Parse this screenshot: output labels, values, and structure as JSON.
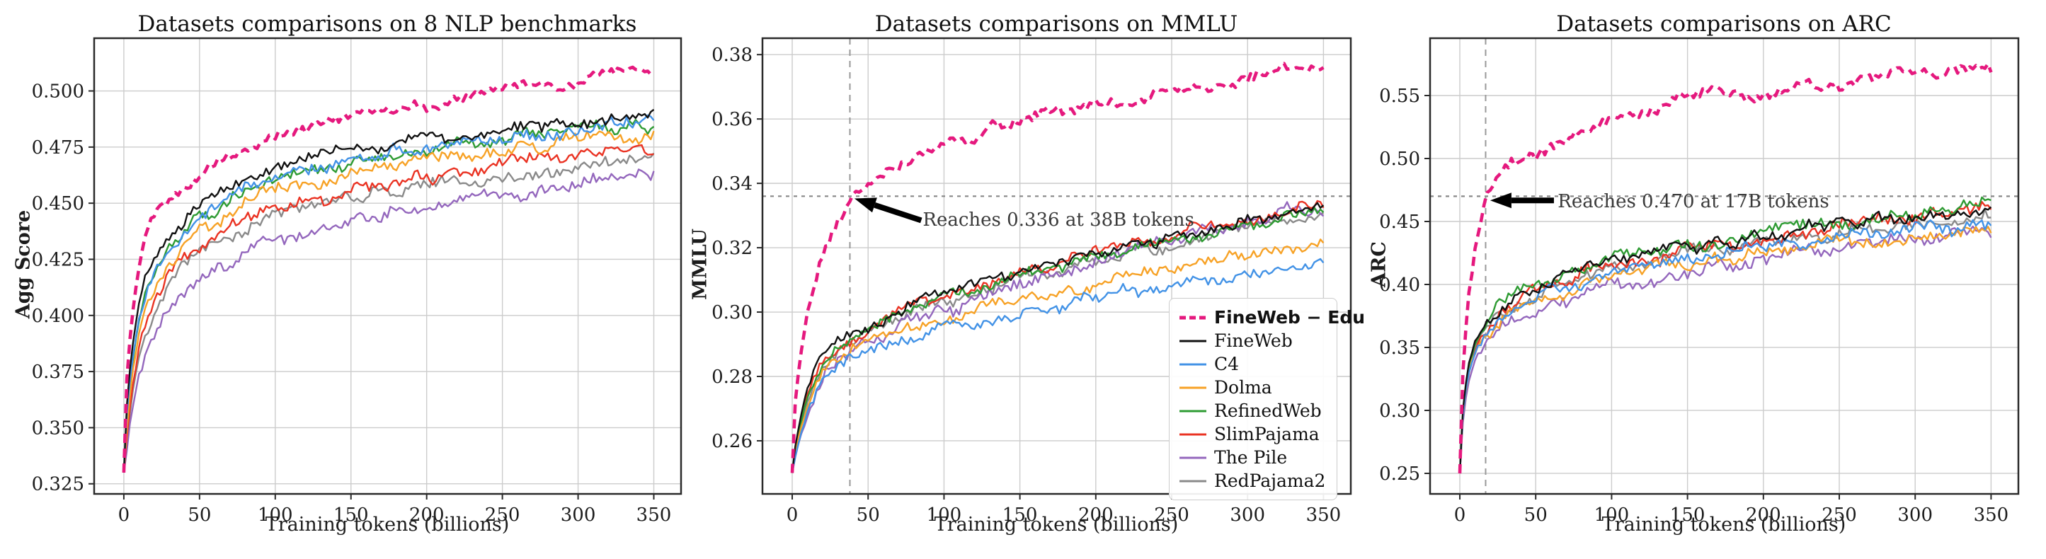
{
  "figure": {
    "background": "#ffffff",
    "text_color": "#1c1c1c",
    "grid_color": "#cccccc",
    "spine_color": "#2a2a2a",
    "guide_dash_color": "#999999",
    "guide_dot_color": "#888888",
    "annotation_color": "#3a3a3a"
  },
  "legend": {
    "position": "lower-right-of-middle-plot",
    "entries": [
      {
        "label": "FineWeb − Edu",
        "color": "#e5197e",
        "dashed": true,
        "bold": true
      },
      {
        "label": "FineWeb",
        "color": "#111111",
        "dashed": false,
        "bold": false
      },
      {
        "label": "C4",
        "color": "#4292e6",
        "dashed": false,
        "bold": false
      },
      {
        "label": "Dolma",
        "color": "#f7a226",
        "dashed": false,
        "bold": false
      },
      {
        "label": "RefinedWeb",
        "color": "#2e9b33",
        "dashed": false,
        "bold": false
      },
      {
        "label": "SlimPajama",
        "color": "#ea3323",
        "dashed": false,
        "bold": false
      },
      {
        "label": "The Pile",
        "color": "#9467bd",
        "dashed": false,
        "bold": false
      },
      {
        "label": "RedPajama2",
        "color": "#8a8a8a",
        "dashed": false,
        "bold": false
      }
    ]
  },
  "chart_data": [
    {
      "type": "line",
      "title": "Datasets comparisons on 8 NLP benchmarks",
      "xlabel": "Training tokens (billions)",
      "ylabel": "Agg Score",
      "xlim": [
        -19.6,
        368
      ],
      "ylim": [
        0.3205,
        0.5235
      ],
      "xticks": [
        "0",
        "50",
        "100",
        "150",
        "200",
        "250",
        "300",
        "350"
      ],
      "yticks": [
        "0.325",
        "0.350",
        "0.375",
        "0.400",
        "0.425",
        "0.450",
        "0.475",
        "0.500"
      ],
      "grid": true,
      "jitter": 0.0026,
      "x_keypoints": [
        0,
        2,
        5,
        10,
        15,
        20,
        30,
        40,
        50,
        75,
        100,
        125,
        150,
        175,
        200,
        225,
        250,
        275,
        300,
        325,
        350
      ],
      "series": [
        {
          "name": "FineWeb − Edu",
          "color": "#e5197e",
          "dashed": true,
          "jitter_scale": 0.75,
          "values": [
            0.33,
            0.372,
            0.398,
            0.422,
            0.437,
            0.444,
            0.452,
            0.458,
            0.464,
            0.473,
            0.48,
            0.484,
            0.488,
            0.491,
            0.493,
            0.497,
            0.503,
            0.503,
            0.504,
            0.51,
            0.508
          ]
        },
        {
          "name": "FineWeb",
          "color": "#111111",
          "dashed": false,
          "jitter_scale": 1,
          "values": [
            0.33,
            0.36,
            0.383,
            0.404,
            0.417,
            0.425,
            0.437,
            0.443,
            0.448,
            0.459,
            0.466,
            0.47,
            0.473,
            0.476,
            0.479,
            0.481,
            0.483,
            0.485,
            0.486,
            0.487,
            0.49
          ]
        },
        {
          "name": "C4",
          "color": "#4292e6",
          "dashed": false,
          "jitter_scale": 1,
          "values": [
            0.33,
            0.356,
            0.378,
            0.398,
            0.412,
            0.42,
            0.432,
            0.439,
            0.445,
            0.455,
            0.462,
            0.466,
            0.469,
            0.472,
            0.476,
            0.478,
            0.48,
            0.482,
            0.484,
            0.486,
            0.487
          ]
        },
        {
          "name": "Dolma",
          "color": "#f7a226",
          "dashed": false,
          "jitter_scale": 1,
          "values": [
            0.33,
            0.35,
            0.372,
            0.392,
            0.405,
            0.413,
            0.425,
            0.432,
            0.438,
            0.448,
            0.455,
            0.459,
            0.463,
            0.466,
            0.469,
            0.471,
            0.474,
            0.476,
            0.478,
            0.479,
            0.481
          ]
        },
        {
          "name": "RefinedWeb",
          "color": "#2e9b33",
          "dashed": false,
          "jitter_scale": 1,
          "values": [
            0.33,
            0.355,
            0.376,
            0.396,
            0.41,
            0.418,
            0.43,
            0.437,
            0.443,
            0.453,
            0.46,
            0.464,
            0.468,
            0.471,
            0.474,
            0.476,
            0.478,
            0.48,
            0.482,
            0.483,
            0.485
          ]
        },
        {
          "name": "SlimPajama",
          "color": "#ea3323",
          "dashed": false,
          "jitter_scale": 1,
          "values": [
            0.33,
            0.346,
            0.366,
            0.385,
            0.398,
            0.406,
            0.418,
            0.425,
            0.431,
            0.441,
            0.448,
            0.452,
            0.456,
            0.459,
            0.462,
            0.465,
            0.467,
            0.469,
            0.471,
            0.473,
            0.476
          ]
        },
        {
          "name": "The Pile",
          "color": "#9467bd",
          "dashed": false,
          "jitter_scale": 1,
          "values": [
            0.33,
            0.34,
            0.357,
            0.374,
            0.385,
            0.392,
            0.403,
            0.41,
            0.416,
            0.426,
            0.433,
            0.438,
            0.442,
            0.445,
            0.448,
            0.451,
            0.453,
            0.456,
            0.458,
            0.461,
            0.464
          ]
        },
        {
          "name": "RedPajama2",
          "color": "#8a8a8a",
          "dashed": false,
          "jitter_scale": 1,
          "values": [
            0.33,
            0.344,
            0.363,
            0.382,
            0.394,
            0.402,
            0.414,
            0.421,
            0.427,
            0.437,
            0.444,
            0.448,
            0.452,
            0.455,
            0.458,
            0.46,
            0.462,
            0.464,
            0.466,
            0.467,
            0.47
          ]
        }
      ]
    },
    {
      "type": "line",
      "title": "Datasets comparisons on MMLU",
      "xlabel": "Training tokens (billions)",
      "ylabel": "MMLU",
      "xlim": [
        -19.6,
        368
      ],
      "ylim": [
        0.2435,
        0.3851
      ],
      "xticks": [
        "0",
        "50",
        "100",
        "150",
        "200",
        "250",
        "300",
        "350"
      ],
      "yticks": [
        "0.26",
        "0.28",
        "0.30",
        "0.32",
        "0.34",
        "0.36",
        "0.38"
      ],
      "grid": true,
      "jitter": 0.0016,
      "vline_x": 38,
      "hline_y": 0.336,
      "show_legend": true,
      "annotation": {
        "text": "Reaches 0.336 at 38B tokens",
        "text_pos": [
          86,
          0.3268
        ],
        "arrow_from": [
          85,
          0.3285
        ],
        "arrow_to": [
          41,
          0.3353
        ]
      },
      "x_keypoints": [
        0,
        2,
        5,
        10,
        15,
        20,
        30,
        40,
        50,
        75,
        100,
        125,
        150,
        175,
        200,
        225,
        250,
        275,
        300,
        325,
        350
      ],
      "series": [
        {
          "name": "FineWeb − Edu",
          "color": "#e5197e",
          "dashed": true,
          "jitter_scale": 1.0,
          "values": [
            0.25,
            0.272,
            0.285,
            0.3,
            0.31,
            0.318,
            0.328,
            0.337,
            0.341,
            0.347,
            0.352,
            0.356,
            0.361,
            0.363,
            0.364,
            0.366,
            0.37,
            0.368,
            0.374,
            0.376,
            0.374
          ]
        },
        {
          "name": "FineWeb",
          "color": "#111111",
          "dashed": false,
          "jitter_scale": 1,
          "values": [
            0.25,
            0.258,
            0.266,
            0.276,
            0.282,
            0.287,
            0.291,
            0.293,
            0.296,
            0.302,
            0.306,
            0.309,
            0.313,
            0.315,
            0.318,
            0.321,
            0.323,
            0.326,
            0.328,
            0.33,
            0.332
          ]
        },
        {
          "name": "C4",
          "color": "#4292e6",
          "dashed": false,
          "jitter_scale": 1,
          "values": [
            0.25,
            0.255,
            0.261,
            0.269,
            0.274,
            0.278,
            0.282,
            0.285,
            0.287,
            0.292,
            0.295,
            0.297,
            0.3,
            0.302,
            0.305,
            0.307,
            0.309,
            0.311,
            0.313,
            0.314,
            0.317
          ]
        },
        {
          "name": "Dolma",
          "color": "#f7a226",
          "dashed": false,
          "jitter_scale": 1,
          "values": [
            0.25,
            0.256,
            0.263,
            0.271,
            0.277,
            0.281,
            0.285,
            0.288,
            0.29,
            0.295,
            0.298,
            0.301,
            0.304,
            0.306,
            0.309,
            0.311,
            0.313,
            0.315,
            0.317,
            0.319,
            0.321
          ]
        },
        {
          "name": "RefinedWeb",
          "color": "#2e9b33",
          "dashed": false,
          "jitter_scale": 1,
          "values": [
            0.25,
            0.257,
            0.264,
            0.273,
            0.279,
            0.283,
            0.288,
            0.291,
            0.294,
            0.3,
            0.304,
            0.308,
            0.311,
            0.314,
            0.317,
            0.32,
            0.322,
            0.325,
            0.327,
            0.329,
            0.332
          ]
        },
        {
          "name": "SlimPajama",
          "color": "#ea3323",
          "dashed": false,
          "jitter_scale": 1,
          "values": [
            0.25,
            0.257,
            0.265,
            0.274,
            0.28,
            0.284,
            0.289,
            0.292,
            0.295,
            0.301,
            0.305,
            0.309,
            0.312,
            0.315,
            0.318,
            0.321,
            0.324,
            0.327,
            0.329,
            0.331,
            0.334
          ]
        },
        {
          "name": "The Pile",
          "color": "#9467bd",
          "dashed": false,
          "jitter_scale": 1.2,
          "values": [
            0.25,
            0.255,
            0.261,
            0.269,
            0.275,
            0.279,
            0.284,
            0.287,
            0.29,
            0.296,
            0.3,
            0.304,
            0.308,
            0.311,
            0.315,
            0.319,
            0.322,
            0.325,
            0.328,
            0.332,
            0.331
          ]
        },
        {
          "name": "RedPajama2",
          "color": "#8a8a8a",
          "dashed": false,
          "jitter_scale": 1,
          "values": [
            0.25,
            0.256,
            0.263,
            0.272,
            0.278,
            0.282,
            0.287,
            0.29,
            0.293,
            0.299,
            0.303,
            0.307,
            0.31,
            0.313,
            0.316,
            0.319,
            0.321,
            0.324,
            0.326,
            0.328,
            0.33
          ]
        }
      ]
    },
    {
      "type": "line",
      "title": "Datasets comparisons on ARC",
      "xlabel": "Training tokens (billions)",
      "ylabel": "ARC",
      "xlim": [
        -19.6,
        368
      ],
      "ylim": [
        0.2337,
        0.5955
      ],
      "xticks": [
        "0",
        "50",
        "100",
        "150",
        "200",
        "250",
        "300",
        "350"
      ],
      "yticks": [
        "0.25",
        "0.30",
        "0.35",
        "0.40",
        "0.45",
        "0.50",
        "0.55"
      ],
      "grid": true,
      "jitter": 0.0045,
      "vline_x": 17,
      "hline_y": 0.47,
      "annotation": {
        "text": "Reaches 0.470 at 17B tokens",
        "text_pos": [
          64.5,
          0.4612
        ],
        "arrow_from": [
          62,
          0.4667
        ],
        "arrow_to": [
          20,
          0.4667
        ]
      },
      "x_keypoints": [
        0,
        2,
        5,
        10,
        15,
        20,
        30,
        40,
        50,
        75,
        100,
        125,
        150,
        175,
        200,
        225,
        250,
        275,
        300,
        325,
        350
      ],
      "series": [
        {
          "name": "FineWeb − Edu",
          "color": "#e5197e",
          "dashed": true,
          "jitter_scale": 0.95,
          "values": [
            0.25,
            0.33,
            0.385,
            0.43,
            0.462,
            0.478,
            0.495,
            0.502,
            0.506,
            0.519,
            0.53,
            0.539,
            0.549,
            0.551,
            0.547,
            0.556,
            0.559,
            0.563,
            0.568,
            0.573,
            0.574
          ]
        },
        {
          "name": "FineWeb",
          "color": "#111111",
          "dashed": false,
          "jitter_scale": 1,
          "values": [
            0.25,
            0.3,
            0.332,
            0.355,
            0.365,
            0.373,
            0.385,
            0.392,
            0.398,
            0.41,
            0.418,
            0.424,
            0.43,
            0.434,
            0.439,
            0.444,
            0.448,
            0.452,
            0.456,
            0.458,
            0.46
          ]
        },
        {
          "name": "C4",
          "color": "#4292e6",
          "dashed": false,
          "jitter_scale": 1,
          "values": [
            0.25,
            0.295,
            0.327,
            0.349,
            0.36,
            0.367,
            0.378,
            0.384,
            0.39,
            0.401,
            0.409,
            0.415,
            0.421,
            0.425,
            0.43,
            0.434,
            0.438,
            0.441,
            0.444,
            0.446,
            0.448
          ]
        },
        {
          "name": "Dolma",
          "color": "#f7a226",
          "dashed": false,
          "jitter_scale": 1,
          "values": [
            0.25,
            0.294,
            0.326,
            0.348,
            0.358,
            0.365,
            0.376,
            0.382,
            0.388,
            0.398,
            0.406,
            0.412,
            0.417,
            0.421,
            0.426,
            0.43,
            0.434,
            0.437,
            0.44,
            0.442,
            0.444
          ]
        },
        {
          "name": "RefinedWeb",
          "color": "#2e9b33",
          "dashed": false,
          "jitter_scale": 1.1,
          "values": [
            0.25,
            0.298,
            0.331,
            0.354,
            0.365,
            0.374,
            0.386,
            0.393,
            0.399,
            0.411,
            0.42,
            0.426,
            0.431,
            0.436,
            0.441,
            0.445,
            0.449,
            0.453,
            0.457,
            0.46,
            0.462
          ]
        },
        {
          "name": "SlimPajama",
          "color": "#ea3323",
          "dashed": false,
          "jitter_scale": 1.1,
          "values": [
            0.25,
            0.296,
            0.328,
            0.35,
            0.361,
            0.369,
            0.38,
            0.387,
            0.394,
            0.406,
            0.415,
            0.421,
            0.427,
            0.432,
            0.437,
            0.442,
            0.447,
            0.451,
            0.455,
            0.458,
            0.461
          ]
        },
        {
          "name": "The Pile",
          "color": "#9467bd",
          "dashed": false,
          "jitter_scale": 1.1,
          "values": [
            0.25,
            0.29,
            0.32,
            0.342,
            0.352,
            0.358,
            0.368,
            0.374,
            0.38,
            0.391,
            0.399,
            0.405,
            0.411,
            0.416,
            0.421,
            0.426,
            0.43,
            0.434,
            0.438,
            0.441,
            0.443
          ]
        },
        {
          "name": "RedPajama2",
          "color": "#8a8a8a",
          "dashed": false,
          "jitter_scale": 1,
          "values": [
            0.25,
            0.297,
            0.329,
            0.351,
            0.362,
            0.369,
            0.38,
            0.387,
            0.393,
            0.404,
            0.412,
            0.418,
            0.424,
            0.428,
            0.433,
            0.437,
            0.441,
            0.444,
            0.447,
            0.45,
            0.452
          ]
        }
      ]
    }
  ]
}
